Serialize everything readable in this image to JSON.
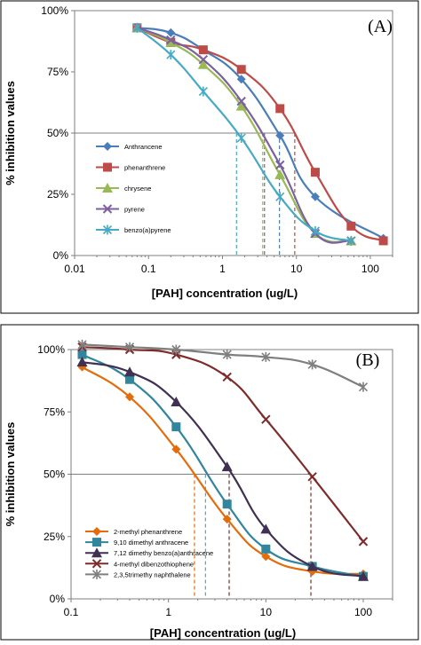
{
  "chart_data": [
    {
      "type": "line",
      "panel_label": "(A)",
      "xlabel": "[PAH] concentration (ug/L)",
      "ylabel": "% inhibition values",
      "xscale": "log",
      "xlim": [
        0.01,
        200
      ],
      "ylim": [
        0,
        100
      ],
      "xticks": [
        {
          "v": 0.01,
          "label": "0.01"
        },
        {
          "v": 0.1,
          "label": "0.1"
        },
        {
          "v": 1,
          "label": "1"
        },
        {
          "v": 10,
          "label": "10"
        },
        {
          "v": 100,
          "label": "100"
        }
      ],
      "yticks": [
        {
          "v": 0,
          "label": "0%"
        },
        {
          "v": 25,
          "label": "25%"
        },
        {
          "v": 50,
          "label": "50%"
        },
        {
          "v": 75,
          "label": "75%"
        },
        {
          "v": 100,
          "label": "100%"
        }
      ],
      "legend_position": "left",
      "ref_line_y": 50,
      "series": [
        {
          "name": "Anthrancene",
          "color": "#4a7ebb",
          "marker": "diamond",
          "x": [
            0.07,
            0.2,
            0.55,
            1.8,
            6,
            18,
            150
          ],
          "y": [
            93,
            91,
            84,
            72,
            49,
            24,
            7
          ]
        },
        {
          "name": "phenanthrene",
          "color": "#be4b48",
          "marker": "square",
          "x": [
            0.07,
            0.2,
            0.55,
            1.8,
            6,
            18,
            55,
            150
          ],
          "y": [
            93,
            87,
            84,
            76,
            60,
            34,
            12,
            6
          ]
        },
        {
          "name": "chrysene",
          "color": "#98b954",
          "marker": "triangle",
          "x": [
            0.07,
            0.2,
            0.55,
            1.8,
            6,
            18,
            55
          ],
          "y": [
            93,
            87,
            78,
            61,
            33,
            9,
            6
          ]
        },
        {
          "name": "pyrene",
          "color": "#7d60a0",
          "marker": "x",
          "x": [
            0.07,
            0.2,
            0.55,
            1.8,
            6,
            18,
            55
          ],
          "y": [
            93,
            88,
            80,
            63,
            37,
            9,
            6
          ]
        },
        {
          "name": "benzo(a)pyrene",
          "color": "#46aac5",
          "marker": "star",
          "x": [
            0.07,
            0.2,
            0.55,
            1.8,
            6,
            18,
            55
          ],
          "y": [
            93,
            82,
            67,
            48,
            24,
            10,
            6
          ]
        }
      ],
      "ec50_markers": [
        {
          "x": 1.55,
          "color": "#46aac5"
        },
        {
          "x": 3.5,
          "color": "#98b954"
        },
        {
          "x": 3.7,
          "color": "#7d60a0"
        },
        {
          "x": 5.9,
          "color": "#4a7ebb"
        },
        {
          "x": 9.5,
          "color": "#be4b48"
        }
      ]
    },
    {
      "type": "line",
      "panel_label": "(B)",
      "xlabel": "[PAH] concentration (ug/L)",
      "ylabel": "% inhibition values",
      "xscale": "log",
      "xlim": [
        0.1,
        200
      ],
      "ylim": [
        0,
        100
      ],
      "xticks": [
        {
          "v": 0.1,
          "label": "0.1"
        },
        {
          "v": 1,
          "label": "1"
        },
        {
          "v": 10,
          "label": "10"
        },
        {
          "v": 100,
          "label": "100"
        }
      ],
      "yticks": [
        {
          "v": 0,
          "label": "0%"
        },
        {
          "v": 25,
          "label": "25%"
        },
        {
          "v": 50,
          "label": "50%"
        },
        {
          "v": 75,
          "label": "75%"
        },
        {
          "v": 100,
          "label": "100%"
        }
      ],
      "legend_position": "bottom-left",
      "ref_line_y": 50,
      "series": [
        {
          "name": "2-methyl phenanthrene",
          "color": "#e46c0a",
          "marker": "diamond",
          "x": [
            0.13,
            0.4,
            1.2,
            4,
            10,
            30,
            100
          ],
          "y": [
            93,
            81,
            60,
            32,
            17,
            11,
            10
          ]
        },
        {
          "name": "9,10 dimethyl anthracene",
          "color": "#31859c",
          "marker": "square",
          "x": [
            0.13,
            0.4,
            1.2,
            4,
            10,
            30,
            100
          ],
          "y": [
            98,
            88,
            69,
            38,
            20,
            13,
            9
          ]
        },
        {
          "name": "7,12 dimethy benzo(a)anthracene",
          "color": "#403152",
          "marker": "triangle",
          "x": [
            0.13,
            0.4,
            1.2,
            4,
            10,
            30,
            100
          ],
          "y": [
            95,
            91,
            79,
            53,
            28,
            13,
            9
          ]
        },
        {
          "name": "4-methyl dibenzothiophene",
          "color": "#7f2b2b",
          "marker": "x",
          "x": [
            0.13,
            0.4,
            1.2,
            4,
            10,
            30,
            100
          ],
          "y": [
            101,
            100,
            98,
            89,
            72,
            49,
            23
          ]
        },
        {
          "name": "2,3,5trimethy naphthalene",
          "color": "#7f7f7f",
          "marker": "star",
          "x": [
            0.13,
            0.4,
            1.2,
            4,
            10,
            30,
            100
          ],
          "y": [
            102,
            101,
            100,
            98,
            97,
            94,
            85
          ]
        }
      ],
      "ec50_markers": [
        {
          "x": 1.85,
          "color": "#e46c0a"
        },
        {
          "x": 2.4,
          "color": "#46aac5"
        },
        {
          "x": 4.2,
          "color": "#7f2b2b"
        },
        {
          "x": 29,
          "color": "#7f2b2b"
        }
      ]
    }
  ]
}
